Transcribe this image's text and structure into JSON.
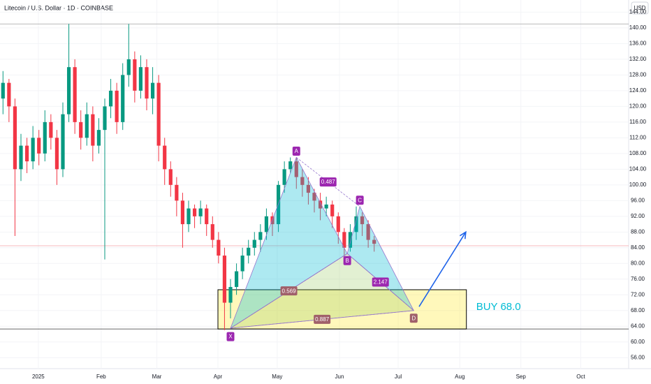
{
  "chart_data": {
    "type": "candlestick",
    "title": "Litecoin / U.S. Dollar · 1D · COINBASE",
    "currency": "USD",
    "up_color": "#089981",
    "down_color": "#f23645",
    "open": [
      122,
      126,
      120,
      104,
      110,
      106,
      112,
      108,
      116,
      112,
      104,
      118,
      130,
      116,
      112,
      118,
      110,
      114,
      120,
      124,
      116,
      128,
      132,
      124,
      130,
      122,
      126,
      110,
      104,
      100,
      96,
      90,
      94,
      92,
      94,
      90,
      86,
      82,
      70,
      74,
      78,
      82,
      84,
      86,
      88,
      92,
      90,
      100,
      104,
      106,
      102,
      100,
      98,
      96,
      94,
      95,
      92,
      88,
      84,
      88,
      92,
      90,
      86
    ],
    "high": [
      129,
      127,
      122,
      113,
      112,
      115,
      114,
      119,
      118,
      114,
      121,
      141,
      132,
      119,
      121,
      120,
      117,
      122,
      127,
      126,
      131,
      141,
      134,
      133,
      132,
      130,
      128,
      112,
      106,
      102,
      98,
      96,
      95,
      96,
      95,
      92,
      88,
      84,
      76,
      80,
      84,
      86,
      88,
      90,
      94,
      93,
      101,
      106,
      107,
      107,
      104,
      102,
      99,
      98,
      97,
      96,
      93,
      89,
      90,
      94.5,
      93,
      91,
      87
    ],
    "low": [
      118,
      116,
      87,
      101,
      103,
      104,
      105,
      106,
      109,
      100,
      102,
      116,
      113,
      109,
      110,
      106,
      108,
      81,
      117,
      113,
      114,
      125,
      121,
      122,
      119,
      118,
      106,
      100,
      97,
      92,
      84,
      88,
      89,
      90,
      87,
      84,
      80,
      63,
      66,
      72,
      76,
      80,
      82,
      83,
      86,
      87,
      88,
      98,
      103,
      99,
      97,
      95,
      93,
      91,
      92,
      89,
      85,
      82,
      83,
      86,
      87,
      84,
      83
    ],
    "close": [
      126,
      120,
      104,
      110,
      106,
      112,
      108,
      116,
      112,
      104,
      118,
      130,
      116,
      112,
      118,
      110,
      114,
      120,
      124,
      116,
      128,
      132,
      124,
      130,
      122,
      126,
      110,
      104,
      100,
      96,
      90,
      94,
      92,
      94,
      90,
      86,
      82,
      70,
      74,
      78,
      82,
      84,
      86,
      88,
      92,
      90,
      100,
      104,
      106,
      102,
      100,
      98,
      96,
      94,
      95,
      92,
      88,
      84,
      88,
      92,
      90,
      86,
      85
    ],
    "xlim": [
      -0.5,
      104.5
    ],
    "xticks": [
      {
        "value": 5.9,
        "label": "2025"
      },
      {
        "value": 16.4,
        "label": "Feb"
      },
      {
        "value": 25.7,
        "label": "Mar"
      },
      {
        "value": 35.9,
        "label": "Apr"
      },
      {
        "value": 45.8,
        "label": "May"
      },
      {
        "value": 56.2,
        "label": "Jun"
      },
      {
        "value": 66.0,
        "label": "Jul"
      },
      {
        "value": 76.3,
        "label": "Aug"
      },
      {
        "value": 86.5,
        "label": "Sep"
      },
      {
        "value": 96.5,
        "label": "Oct"
      }
    ],
    "ylim": [
      53.2,
      147.1
    ],
    "yticks": [
      {
        "value": 56,
        "label": "56.00"
      },
      {
        "value": 60,
        "label": "60.00"
      },
      {
        "value": 64,
        "label": "64.00"
      },
      {
        "value": 68,
        "label": "68.00"
      },
      {
        "value": 72,
        "label": "72.00"
      },
      {
        "value": 76,
        "label": "76.00"
      },
      {
        "value": 80,
        "label": "80.00"
      },
      {
        "value": 84,
        "label": "84.00"
      },
      {
        "value": 88,
        "label": "88.00"
      },
      {
        "value": 92,
        "label": "92.00"
      },
      {
        "value": 96,
        "label": "96.00"
      },
      {
        "value": 100,
        "label": "100.00"
      },
      {
        "value": 104,
        "label": "104.00"
      },
      {
        "value": 108,
        "label": "108.00"
      },
      {
        "value": 112,
        "label": "112.00"
      },
      {
        "value": 116,
        "label": "116.00"
      },
      {
        "value": 120,
        "label": "120.00"
      },
      {
        "value": 124,
        "label": "124.00"
      },
      {
        "value": 128,
        "label": "128.00"
      },
      {
        "value": 132,
        "label": "132.00"
      },
      {
        "value": 136,
        "label": "136.00"
      },
      {
        "value": 140,
        "label": "140.00"
      },
      {
        "value": 144,
        "label": "144.00"
      }
    ],
    "levels": [
      {
        "value": 141,
        "color": "#b0b0b0"
      },
      {
        "value": 84.5,
        "color": "#f5a0a8"
      },
      {
        "value": 63.3,
        "color": "#555555"
      }
    ],
    "pattern": {
      "points": [
        {
          "label": "X",
          "x": 38,
          "y": 63.5
        },
        {
          "label": "A",
          "x": 49,
          "y": 107
        },
        {
          "label": "B",
          "x": 57.5,
          "y": 82.5
        },
        {
          "label": "C",
          "x": 59.6,
          "y": 94.5
        },
        {
          "label": "D",
          "x": 68.6,
          "y": 68
        }
      ],
      "ratios": {
        "XB": "0.569",
        "AC": "0.487",
        "BD": "2.147",
        "XD": "0.887"
      }
    },
    "buy_zone": {
      "x": [
        35.9,
        77.4
      ],
      "y": [
        63.3,
        73.3
      ],
      "label": "BUY 68.0"
    },
    "arrow": {
      "x": [
        69.5,
        77.3
      ],
      "y": [
        69,
        88
      ]
    }
  }
}
